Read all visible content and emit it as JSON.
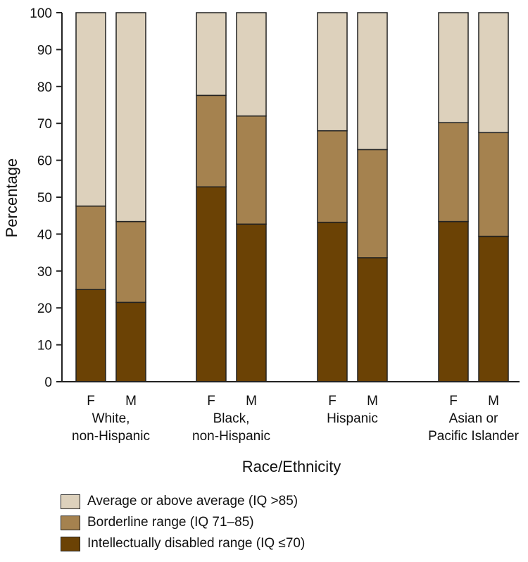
{
  "chart_data": {
    "type": "bar",
    "stacked": true,
    "title": "",
    "xlabel": "Race/Ethnicity",
    "ylabel": "Percentage",
    "ylim": [
      0,
      100
    ],
    "yticks": [
      0,
      10,
      20,
      30,
      40,
      50,
      60,
      70,
      80,
      90,
      100
    ],
    "groups": [
      "White,\nnon-Hispanic",
      "Black,\nnon-Hispanic",
      "Hispanic",
      "Asian or\nPacific Islander"
    ],
    "categories": [
      "F",
      "M",
      "F",
      "M",
      "F",
      "M",
      "F",
      "M"
    ],
    "series": [
      {
        "name": "Intellectually disabled range (IQ ≤70)",
        "color": "#6b4205",
        "values": [
          25,
          21.5,
          52.8,
          42.7,
          43.2,
          33.6,
          43.4,
          39.4
        ]
      },
      {
        "name": "Borderline range (IQ 71–85)",
        "color": "#a5824f",
        "values": [
          22.6,
          21.9,
          24.8,
          29.3,
          24.8,
          29.3,
          26.8,
          28.1
        ]
      },
      {
        "name": "Average or above average (IQ >85)",
        "color": "#ddd1bc",
        "values": [
          52.4,
          56.6,
          22.4,
          28,
          32,
          37.1,
          29.8,
          32.5
        ]
      }
    ],
    "legend_order": [
      2,
      1,
      0
    ],
    "legend_position": "bottom-left"
  }
}
